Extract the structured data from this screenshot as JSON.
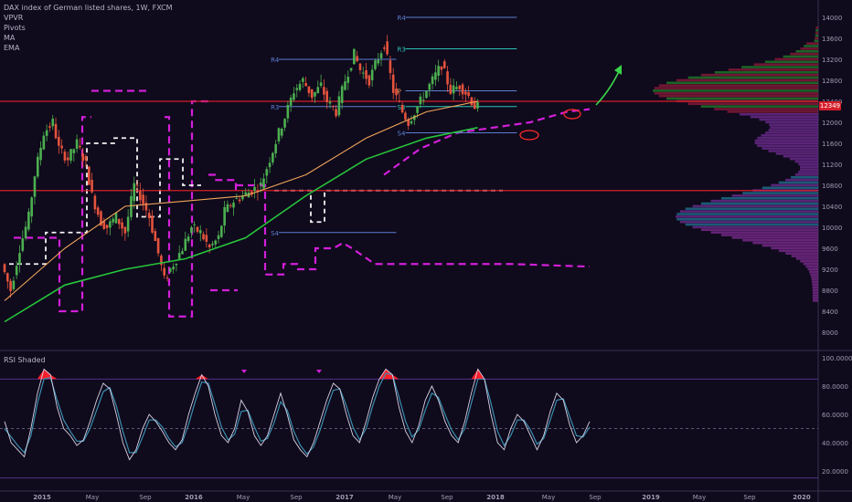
{
  "header": {
    "title": "DAX index of German listed shares, 1W, FXCM",
    "indicators": [
      "VPVR",
      "Pivots",
      "MA",
      "EMA"
    ]
  },
  "last_price": "12349",
  "colors": {
    "background": "#0f0a1c",
    "up": "#4caf50",
    "down": "#e5533d",
    "sma": "#f2a65a",
    "ema": "#27c43b",
    "pivot_r": "#5b7fd1",
    "pivot_r3_cyan": "#2ec4b6",
    "resistance": "#d61f2a",
    "magenta": "#d21fd9",
    "rsi_fill": "#ff1f2a",
    "rsi_band": "#6a3fb0"
  },
  "chart_data": [
    {
      "type": "candlestick",
      "ylim": [
        6000,
        14000
      ],
      "yticks": [
        14000,
        13600,
        13200,
        12800,
        12400,
        12000,
        11600,
        11200,
        10800,
        10400,
        10000,
        9600,
        9200,
        8800,
        8400,
        8000
      ],
      "xticks": [
        "2015",
        "May",
        "Sep",
        "2016",
        "May",
        "Sep",
        "2017",
        "May",
        "Sep",
        "2018",
        "May",
        "Sep",
        "2019",
        "May",
        "Sep",
        "2020"
      ],
      "price_path": [
        [
          0,
          9300
        ],
        [
          3,
          8800
        ],
        [
          6,
          9600
        ],
        [
          9,
          10200
        ],
        [
          11,
          11000
        ],
        [
          14,
          11800
        ],
        [
          17,
          12000
        ],
        [
          19,
          11500
        ],
        [
          22,
          11300
        ],
        [
          25,
          11600
        ],
        [
          28,
          11200
        ],
        [
          30,
          10600
        ],
        [
          33,
          10100
        ],
        [
          35,
          10000
        ],
        [
          38,
          10200
        ],
        [
          41,
          9900
        ],
        [
          44,
          10800
        ],
        [
          46,
          10600
        ],
        [
          49,
          10200
        ],
        [
          52,
          9500
        ],
        [
          54,
          9000
        ],
        [
          57,
          9300
        ],
        [
          60,
          9600
        ],
        [
          63,
          10000
        ],
        [
          66,
          9900
        ],
        [
          69,
          9600
        ],
        [
          72,
          9800
        ],
        [
          74,
          10300
        ],
        [
          77,
          10500
        ],
        [
          80,
          10600
        ],
        [
          83,
          10700
        ],
        [
          86,
          10800
        ],
        [
          89,
          11300
        ],
        [
          92,
          11800
        ],
        [
          94,
          12100
        ],
        [
          97,
          12600
        ],
        [
          100,
          12800
        ],
        [
          103,
          12500
        ],
        [
          106,
          12700
        ],
        [
          108,
          12400
        ],
        [
          111,
          12200
        ],
        [
          114,
          12800
        ],
        [
          117,
          13300
        ],
        [
          119,
          13000
        ],
        [
          122,
          12800
        ],
        [
          124,
          13100
        ],
        [
          127,
          13500
        ],
        [
          130,
          12600
        ],
        [
          133,
          12200
        ],
        [
          135,
          12000
        ],
        [
          138,
          12300
        ],
        [
          141,
          12600
        ],
        [
          144,
          12900
        ],
        [
          146,
          13100
        ],
        [
          149,
          12600
        ],
        [
          152,
          12700
        ],
        [
          155,
          12500
        ],
        [
          157,
          12300
        ]
      ],
      "sma_path": [
        [
          0,
          8600
        ],
        [
          20,
          9600
        ],
        [
          40,
          10400
        ],
        [
          60,
          10500
        ],
        [
          80,
          10600
        ],
        [
          100,
          11000
        ],
        [
          120,
          11700
        ],
        [
          140,
          12200
        ],
        [
          157,
          12400
        ]
      ],
      "ema_path": [
        [
          0,
          8200
        ],
        [
          20,
          8900
        ],
        [
          40,
          9200
        ],
        [
          60,
          9400
        ],
        [
          80,
          9800
        ],
        [
          100,
          10600
        ],
        [
          120,
          11300
        ],
        [
          140,
          11700
        ],
        [
          157,
          11900
        ]
      ],
      "pivots": [
        {
          "label": "R4",
          "price": 14000,
          "x0": 130,
          "x1": 170
        },
        {
          "label": "R3",
          "price": 13400,
          "x0": 130,
          "x1": 170
        },
        {
          "label": "R4",
          "price": 13200,
          "x0": 88,
          "x1": 130
        },
        {
          "label": "P",
          "price": 12600,
          "x0": 130,
          "x1": 170
        },
        {
          "label": "R3",
          "price": 12300,
          "x0": 88,
          "x1": 130
        },
        {
          "label": "S3",
          "price": 12300,
          "x0": 130,
          "x1": 170
        },
        {
          "label": "S4",
          "price": 11800,
          "x0": 130,
          "x1": 170
        },
        {
          "label": "S4",
          "price": 9900,
          "x0": 88,
          "x1": 130
        }
      ],
      "resistance_lines": [
        12400,
        10700
      ]
    },
    {
      "type": "line",
      "title": "RSI Shaded",
      "ylim": [
        15,
        100
      ],
      "yticks": [
        100,
        80,
        60,
        40,
        20
      ],
      "ytick_labels": [
        "100.0000",
        "80.0000",
        "60.0000",
        "40.0000",
        "20.0000"
      ],
      "bands": [
        85,
        15
      ],
      "midline": 50,
      "series": [
        {
          "values": [
            55,
            40,
            35,
            30,
            50,
            75,
            92,
            88,
            65,
            50,
            45,
            38,
            42,
            55,
            70,
            82,
            78,
            60,
            40,
            28,
            35,
            50,
            60,
            55,
            48,
            40,
            35,
            42,
            60,
            75,
            88,
            80,
            60,
            45,
            40,
            50,
            70,
            62,
            45,
            38,
            45,
            60,
            75,
            60,
            42,
            35,
            30,
            40,
            55,
            70,
            82,
            78,
            60,
            45,
            40,
            55,
            72,
            85,
            92,
            88,
            65,
            48,
            40,
            52,
            70,
            80,
            70,
            55,
            45,
            40,
            55,
            75,
            92,
            85,
            60,
            40,
            35,
            50,
            60,
            55,
            45,
            35,
            45,
            62,
            75,
            70,
            52,
            40,
            45,
            55
          ]
        },
        {
          "values": [
            50,
            44,
            38,
            33,
            45,
            68,
            85,
            86,
            70,
            56,
            48,
            41,
            41,
            50,
            63,
            76,
            79,
            66,
            48,
            33,
            33,
            44,
            56,
            56,
            51,
            43,
            37,
            40,
            53,
            69,
            83,
            82,
            67,
            51,
            42,
            46,
            62,
            63,
            51,
            41,
            43,
            54,
            69,
            63,
            48,
            38,
            32,
            37,
            49,
            64,
            77,
            78,
            66,
            51,
            42,
            50,
            66,
            80,
            89,
            88,
            72,
            55,
            44,
            49,
            63,
            75,
            72,
            60,
            49,
            42,
            50,
            68,
            85,
            85,
            68,
            48,
            38,
            45,
            56,
            56,
            49,
            39,
            43,
            56,
            70,
            71,
            58,
            45,
            44,
            51
          ]
        }
      ]
    }
  ]
}
